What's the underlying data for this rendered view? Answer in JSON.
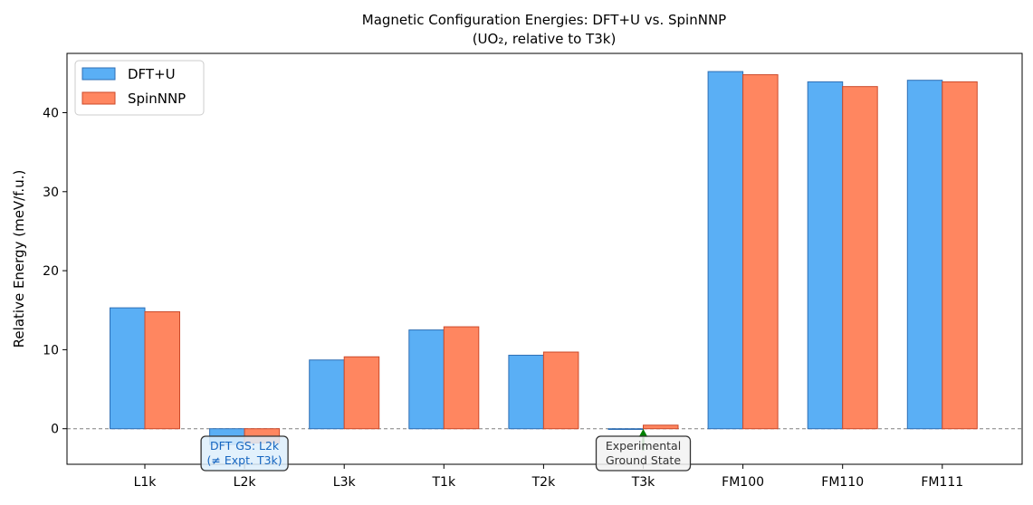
{
  "chart_data": {
    "type": "bar",
    "title": "Magnetic Configuration Energies: DFT+U vs. SpinNNP",
    "subtitle": "(UO₂, relative to T3k)",
    "xlabel": "",
    "ylabel": "Relative Energy (meV/f.u.)",
    "ylim": [
      -4.5,
      47.5
    ],
    "yticks": [
      0,
      10,
      20,
      30,
      40
    ],
    "categories": [
      "L1k",
      "L2k",
      "L3k",
      "T1k",
      "T2k",
      "T3k",
      "FM100",
      "FM110",
      "FM111"
    ],
    "series": [
      {
        "name": "DFT+U",
        "color": "#5aaff5",
        "edge": "#2f6fb5",
        "values": [
          15.3,
          -2.0,
          8.7,
          12.5,
          9.3,
          0.0,
          45.2,
          43.9,
          44.1
        ]
      },
      {
        "name": "SpinNNP",
        "color": "#ff8660",
        "edge": "#cc4a2a",
        "values": [
          14.8,
          -1.8,
          9.1,
          12.9,
          9.7,
          0.45,
          44.8,
          43.3,
          43.9
        ]
      }
    ],
    "legend": "top-left",
    "grid": false,
    "reference_line": {
      "y": 0,
      "style": "dashed",
      "color": "#808080"
    },
    "annotations": [
      {
        "text": [
          "DFT GS: L2k",
          "(≠ Expt. T3k)"
        ],
        "category": "L2k",
        "color": "#1565c0",
        "box": "#ddeefc"
      },
      {
        "text": [
          "Experimental",
          "Ground State"
        ],
        "category": "T3k",
        "color": "#333333",
        "box": "#f2f2f2",
        "arrow_color": "#008000"
      }
    ]
  }
}
